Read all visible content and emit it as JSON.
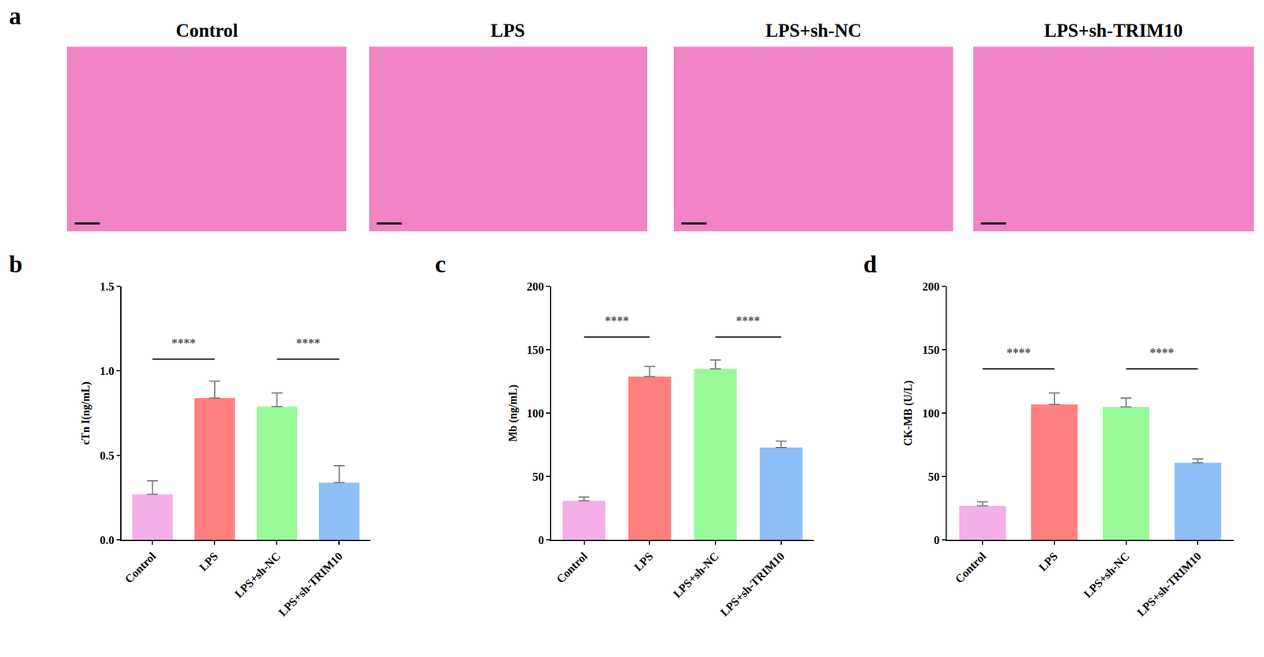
{
  "image_panel": {
    "panel_label": "a",
    "titles": [
      "Control",
      "LPS",
      "LPS+sh-NC",
      "LPS+sh-TRIM10"
    ]
  },
  "chart_data": [
    {
      "type": "bar",
      "panel_label": "b",
      "categories": [
        "Control",
        "LPS",
        "LPS+sh-NC",
        "LPS+sh-TRIM10"
      ],
      "values": [
        0.27,
        0.84,
        0.79,
        0.34
      ],
      "errors": [
        0.08,
        0.1,
        0.08,
        0.1
      ],
      "colors": [
        "#f4aee8",
        "#ff7f7f",
        "#98fb98",
        "#8fbff7"
      ],
      "y_label": "cTn I(ng/mL)",
      "ylim": [
        0,
        1.5
      ],
      "yticks": [
        {
          "value": 0,
          "label": "0.0"
        },
        0.5,
        {
          "value": 1,
          "label": "1.0"
        },
        1.5
      ],
      "annotations": [
        {
          "text": "****",
          "from": "Control",
          "to": "LPS",
          "y": 1.07
        },
        {
          "text": "****",
          "from": "LPS+sh-NC",
          "to": "LPS+sh-TRIM10",
          "y": 1.07
        }
      ],
      "grid": false
    },
    {
      "type": "bar",
      "panel_label": "c",
      "categories": [
        "Control",
        "LPS",
        "LPS+sh-NC",
        "LPS+sh-TRIM10"
      ],
      "values": [
        31,
        129,
        135,
        73
      ],
      "errors": [
        3,
        8,
        7,
        5
      ],
      "colors": [
        "#f4aee8",
        "#ff7f7f",
        "#98fb98",
        "#8fbff7"
      ],
      "y_label": "Mb (ng/mL)",
      "ylim": [
        0,
        200
      ],
      "yticks": [
        0,
        50,
        100,
        150,
        200
      ],
      "annotations": [
        {
          "text": "****",
          "from": "Control",
          "to": "LPS",
          "y": 160
        },
        {
          "text": "****",
          "from": "LPS+sh-NC",
          "to": "LPS+sh-TRIM10",
          "y": 160
        }
      ],
      "grid": false
    },
    {
      "type": "bar",
      "panel_label": "d",
      "categories": [
        "Control",
        "LPS",
        "LPS+sh-NC",
        "LPS+sh-TRIM10"
      ],
      "values": [
        27,
        107,
        105,
        61
      ],
      "errors": [
        3,
        9,
        7,
        3
      ],
      "colors": [
        "#f4aee8",
        "#ff7f7f",
        "#98fb98",
        "#8fbff7"
      ],
      "y_label": "CK-MB (U/L)",
      "ylim": [
        0,
        200
      ],
      "yticks": [
        0,
        50,
        100,
        150,
        200
      ],
      "annotations": [
        {
          "text": "****",
          "from": "Control",
          "to": "LPS",
          "y": 135
        },
        {
          "text": "****",
          "from": "LPS+sh-NC",
          "to": "LPS+sh-TRIM10",
          "y": 135
        }
      ],
      "grid": false
    }
  ]
}
